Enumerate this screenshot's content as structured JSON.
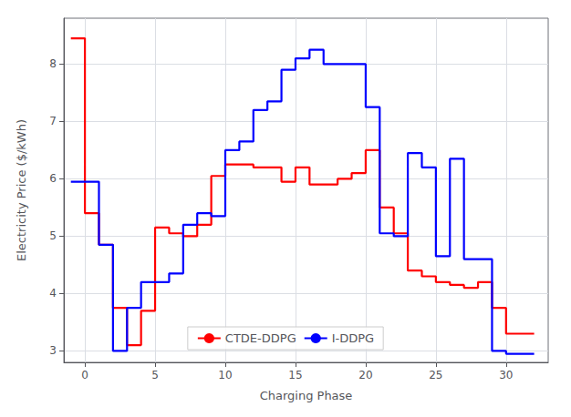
{
  "chart_data": {
    "type": "step",
    "xlabel": "Charging Phase",
    "ylabel": "Electricity Price ($/kWh)",
    "xlim": [
      -1.5,
      33
    ],
    "ylim": [
      2.8,
      8.8
    ],
    "xticks": [
      0,
      5,
      10,
      15,
      20,
      25,
      30
    ],
    "yticks": [
      3,
      4,
      5,
      6,
      7,
      8
    ],
    "grid": true,
    "legend": "lower center",
    "x": [
      -1,
      0,
      1,
      2,
      3,
      4,
      5,
      6,
      7,
      8,
      9,
      10,
      11,
      12,
      13,
      14,
      15,
      16,
      17,
      18,
      19,
      20,
      21,
      22,
      23,
      24,
      25,
      26,
      27,
      28,
      29,
      30,
      31,
      32
    ],
    "series": [
      {
        "name": "CTDE-DDPG",
        "color": "#ff0000",
        "values": [
          8.45,
          5.4,
          4.85,
          3.75,
          3.1,
          3.7,
          5.15,
          5.05,
          5.0,
          5.2,
          6.05,
          6.25,
          6.25,
          6.2,
          6.2,
          5.95,
          6.2,
          5.9,
          5.9,
          6.0,
          6.1,
          6.5,
          5.5,
          5.05,
          4.4,
          4.3,
          4.2,
          4.15,
          4.1,
          4.2,
          3.75,
          3.3,
          3.3,
          3.3
        ]
      },
      {
        "name": "I-DDPG",
        "color": "#0000ff",
        "values": [
          5.95,
          5.95,
          4.85,
          3.0,
          3.75,
          4.2,
          4.2,
          4.35,
          5.2,
          5.4,
          5.35,
          6.5,
          6.65,
          7.2,
          7.35,
          7.9,
          8.1,
          8.25,
          8.0,
          8.0,
          8.0,
          7.25,
          5.05,
          5.0,
          6.45,
          6.2,
          4.65,
          6.35,
          4.6,
          4.6,
          3.0,
          2.95,
          2.95,
          2.95
        ]
      }
    ]
  }
}
